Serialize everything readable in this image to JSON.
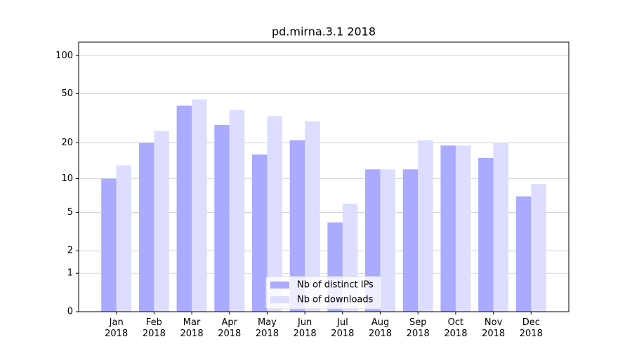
{
  "chart_data": {
    "type": "bar",
    "title": "pd.mirna.3.1 2018",
    "categories": [
      "Jan 2018",
      "Feb 2018",
      "Mar 2018",
      "Apr 2018",
      "May 2018",
      "Jun 2018",
      "Jul 2018",
      "Aug 2018",
      "Sep 2018",
      "Oct 2018",
      "Nov 2018",
      "Dec 2018"
    ],
    "series": [
      {
        "name": "Nb of distinct IPs",
        "color": "#aaaaff",
        "values": [
          10,
          20,
          40,
          28,
          16,
          21,
          4,
          12,
          12,
          19,
          15,
          7
        ]
      },
      {
        "name": "Nb of downloads",
        "color": "#ddddff",
        "values": [
          13,
          25,
          45,
          37,
          33,
          30,
          6,
          12,
          21,
          19,
          20,
          9
        ]
      }
    ],
    "yscale": "log1p",
    "ylim": [
      0,
      128
    ],
    "yticks": [
      0,
      1,
      2,
      5,
      10,
      20,
      50,
      100
    ],
    "grid": true,
    "legend": "lower center"
  }
}
